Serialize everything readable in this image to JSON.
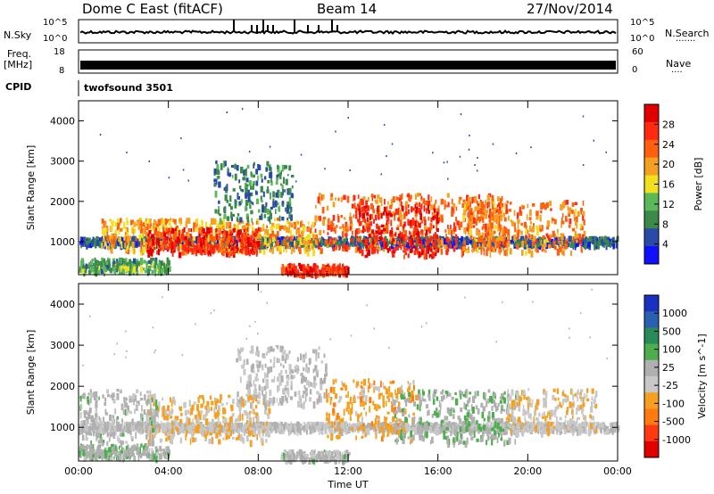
{
  "header": {
    "station": "Dome C East (fitACF)",
    "beam": "Beam 14",
    "date": "27/Nov/2014"
  },
  "strip_labels": {
    "nsky": "N.Sky",
    "nsky_top": "10^5",
    "nsky_bottom": "10^0",
    "nsearch": "N.Search",
    "nsearch_dots": "·······",
    "nsearch_top": "10^5",
    "nsearch_bottom": "10^0",
    "freq": "Freq.",
    "freq_unit": "[MHz]",
    "freq_top": "18",
    "freq_bottom": "8",
    "nave": "Nave",
    "nave_dots": "····",
    "nave_top": "60",
    "nave_bottom": "0",
    "cpid": "CPID",
    "cpid_value": "twofsound 3501"
  },
  "colors": {
    "power_scale": [
      "#1010ff",
      "#2a4aa8",
      "#3b8a4a",
      "#5db85a",
      "#f0e020",
      "#f5a020",
      "#ff6010",
      "#ff2a10",
      "#e00000"
    ],
    "velocity_scale": [
      "#1a30c0",
      "#2a60b0",
      "#2a8a5a",
      "#4cae4c",
      "#b0b0b0",
      "#c8c8c8",
      "#f5a020",
      "#ff7a10",
      "#ff3a10",
      "#e00000"
    ]
  },
  "chart_data": [
    {
      "type": "heatmap",
      "title": "",
      "xlabel": "",
      "ylabel": "Slant Range [km]",
      "x_ticks": [
        "00:00",
        "04:00",
        "08:00",
        "12:00",
        "16:00",
        "20:00",
        "00:00"
      ],
      "y_ticks": [
        "1000",
        "2000",
        "3000",
        "4000"
      ],
      "ylim": [
        180,
        4500
      ],
      "colorbar": {
        "label": "Power [dB]",
        "ticks": [
          "4",
          "8",
          "12",
          "16",
          "20",
          "24",
          "28"
        ],
        "range": [
          0,
          30
        ]
      },
      "bands": [
        {
          "t0": 0.0,
          "t1": 24.0,
          "range_center": 1050,
          "range_width": 120,
          "value": 6
        },
        {
          "t0": 1.0,
          "t1": 10.5,
          "range_center": 1200,
          "range_width": 500,
          "value": 18
        },
        {
          "t0": 3.0,
          "t1": 8.0,
          "range_center": 1050,
          "range_width": 400,
          "value": 26
        },
        {
          "t0": 6.0,
          "t1": 9.5,
          "range_center": 2300,
          "range_width": 900,
          "value": 8
        },
        {
          "t0": 10.5,
          "t1": 19.0,
          "range_center": 1500,
          "range_width": 900,
          "value": 22
        },
        {
          "t0": 12.3,
          "t1": 16.0,
          "range_center": 1300,
          "range_width": 800,
          "value": 27
        },
        {
          "t0": 17.0,
          "t1": 22.5,
          "range_center": 1400,
          "range_width": 800,
          "value": 20
        },
        {
          "t0": 0.0,
          "t1": 4.0,
          "range_center": 450,
          "range_width": 200,
          "value": 10
        },
        {
          "t0": 9.0,
          "t1": 12.0,
          "range_center": 350,
          "range_width": 150,
          "value": 25
        }
      ]
    },
    {
      "type": "heatmap",
      "title": "",
      "xlabel": "Time UT",
      "ylabel": "Slant Range [km]",
      "x_ticks": [
        "00:00",
        "04:00",
        "08:00",
        "12:00",
        "16:00",
        "20:00",
        "00:00"
      ],
      "y_ticks": [
        "1000",
        "2000",
        "3000",
        "4000"
      ],
      "ylim": [
        180,
        4500
      ],
      "colorbar": {
        "label": "Velocity [m s^-1]",
        "ticks": [
          "1000",
          "500",
          "100",
          "25",
          "-25",
          "-100",
          "-500",
          "-1000"
        ],
        "range": [
          1000,
          -1000
        ]
      },
      "bands": [
        {
          "t0": 0.0,
          "t1": 24.0,
          "range_center": 1050,
          "range_width": 120,
          "value": 0
        },
        {
          "t0": 3.0,
          "t1": 8.5,
          "range_center": 1250,
          "range_width": 700,
          "value": -200
        },
        {
          "t0": 0.0,
          "t1": 3.5,
          "range_center": 1300,
          "range_width": 800,
          "value": 80
        },
        {
          "t0": 7.0,
          "t1": 11.0,
          "range_center": 2300,
          "range_width": 900,
          "value": 10
        },
        {
          "t0": 11.0,
          "t1": 15.0,
          "range_center": 1500,
          "range_width": 900,
          "value": -300
        },
        {
          "t0": 14.0,
          "t1": 19.5,
          "range_center": 1300,
          "range_width": 800,
          "value": 150
        },
        {
          "t0": 19.0,
          "t1": 23.0,
          "range_center": 1400,
          "range_width": 700,
          "value": -150
        },
        {
          "t0": 0.0,
          "t1": 4.0,
          "range_center": 450,
          "range_width": 200,
          "value": 120
        },
        {
          "t0": 9.0,
          "t1": 12.0,
          "range_center": 350,
          "range_width": 150,
          "value": 60
        }
      ]
    }
  ],
  "xlabel_bottom": "Time UT"
}
